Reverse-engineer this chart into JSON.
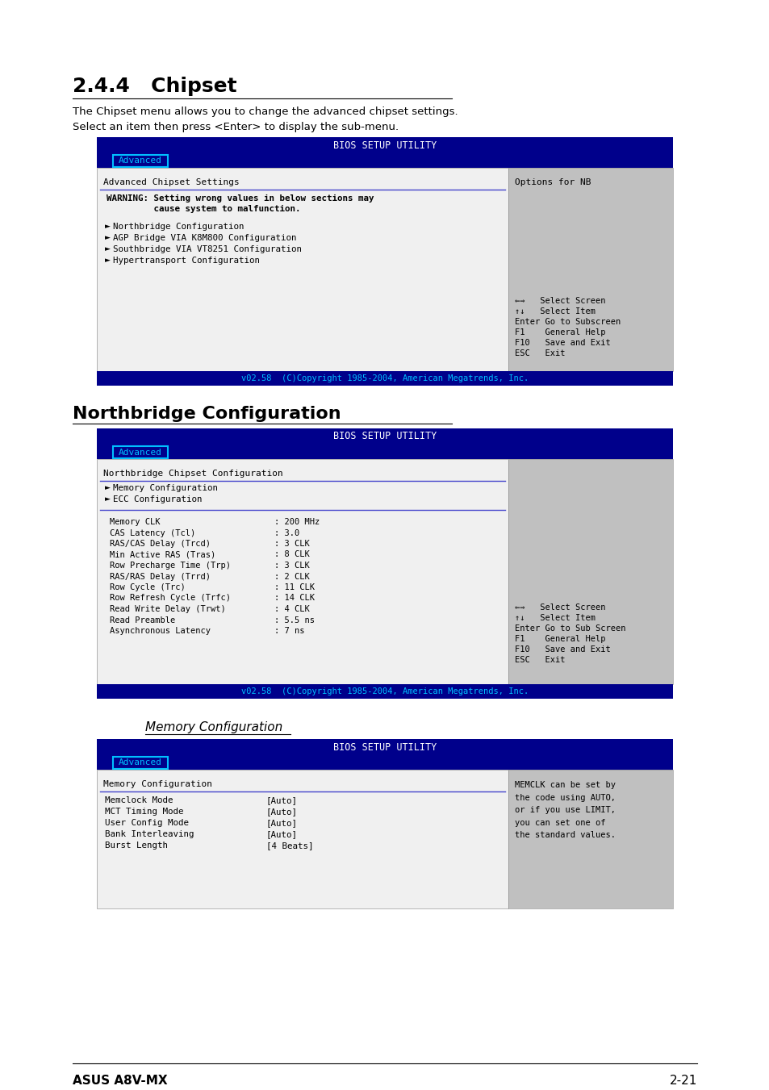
{
  "page_bg": "#ffffff",
  "title1": "2.4.4   Chipset",
  "para1": "The Chipset menu allows you to change the advanced chipset settings.\nSelect an item then press <Enter> to display the sub-menu.",
  "section2_title": "Northbridge Configuration",
  "section3_title": "Memory Configuration",
  "bios_header_bg": "#00008B",
  "bios_header_text": "BIOS SETUP UTILITY",
  "bios_header_color": "#ffffff",
  "tab_border": "#00BFFF",
  "tab_text": "Advanced",
  "tab_text_color": "#00BFFF",
  "main_bg": "#c0c0c0",
  "left_bg": "#f0f0f0",
  "divider_color": "#4444cc",
  "footer_bg": "#00008B",
  "footer_text": "v02.58  (C)Copyright 1985-2004, American Megatrends, Inc.",
  "footer_color": "#00BFFF",
  "screen1": {
    "header": "Advanced Chipset Settings",
    "right_header": "Options for NB",
    "warning_line1": "WARNING: Setting wrong values in below sections may",
    "warning_line2": "         cause system to malfunction.",
    "items": [
      "Northbridge Configuration",
      "AGP Bridge VIA K8M800 Configuration",
      "Southbridge VIA VT8251 Configuration",
      "Hypertransport Configuration"
    ],
    "nav": [
      "⇐⇒   Select Screen",
      "↑↓   Select Item",
      "Enter Go to Subscreen",
      "F1    General Help",
      "F10   Save and Exit",
      "ESC   Exit"
    ]
  },
  "screen2": {
    "header": "Northbridge Chipset Configuration",
    "items": [
      "Memory Configuration",
      "ECC Configuration"
    ],
    "params": [
      [
        "Memory CLK",
        ": 200 MHz"
      ],
      [
        "CAS Latency (Tcl)",
        ": 3.0"
      ],
      [
        "RAS/CAS Delay (Trcd)",
        ": 3 CLK"
      ],
      [
        "Min Active RAS (Tras)",
        ": 8 CLK"
      ],
      [
        "Row Precharge Time (Trp)",
        ": 3 CLK"
      ],
      [
        "RAS/RAS Delay (Trrd)",
        ": 2 CLK"
      ],
      [
        "Row Cycle (Trc)",
        ": 11 CLK"
      ],
      [
        "Row Refresh Cycle (Trfc)",
        ": 14 CLK"
      ],
      [
        "Read Write Delay (Trwt)",
        ": 4 CLK"
      ],
      [
        "Read Preamble",
        ": 5.5 ns"
      ],
      [
        "Asynchronous Latency",
        ": 7 ns"
      ]
    ],
    "nav": [
      "⇐⇒   Select Screen",
      "↑↓   Select Item",
      "Enter Go to Sub Screen",
      "F1    General Help",
      "F10   Save and Exit",
      "ESC   Exit"
    ]
  },
  "screen3": {
    "header": "Memory Configuration",
    "right_text": "MEMCLK can be set by\nthe code using AUTO,\nor if you use LIMIT,\nyou can set one of\nthe standard values.",
    "params": [
      [
        "Memclock Mode",
        "[Auto]"
      ],
      [
        "MCT Timing Mode",
        "[Auto]"
      ],
      [
        "User Config Mode",
        "[Auto]"
      ],
      [
        "Bank Interleaving",
        "[Auto]"
      ],
      [
        "Burst Length",
        "[4 Beats]"
      ]
    ]
  },
  "footer_text2": "ASUS A8V-MX",
  "footer_page": "2-21"
}
